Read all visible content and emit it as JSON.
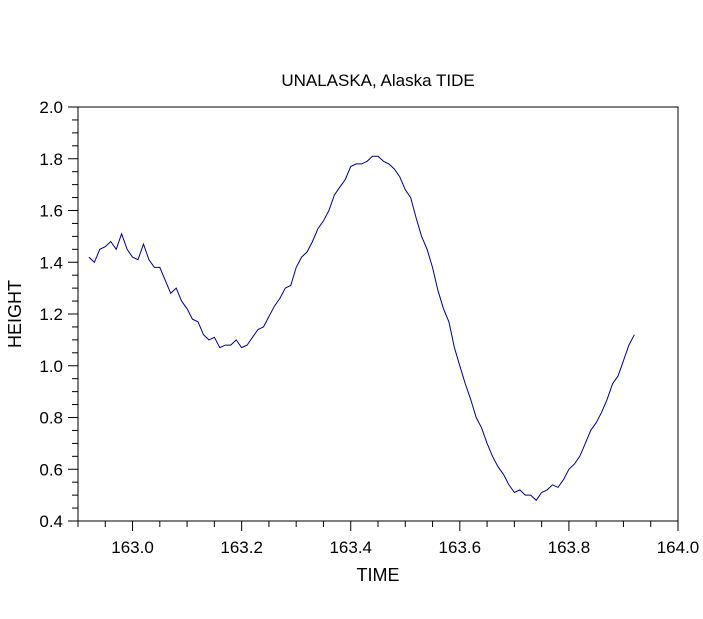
{
  "chart_data": {
    "type": "line",
    "title": "UNALASKA, Alaska TIDE",
    "xlabel": "TIME",
    "ylabel": "HEIGHT",
    "xlim": [
      162.9,
      164.0
    ],
    "ylim": [
      0.4,
      2.0
    ],
    "x_ticks": [
      "163.0",
      "163.2",
      "163.4",
      "163.6",
      "163.8",
      "164.0"
    ],
    "y_ticks": [
      "0.4",
      "0.6",
      "0.8",
      "1.0",
      "1.2",
      "1.4",
      "1.6",
      "1.8",
      "2.0"
    ],
    "grid": false,
    "colors": {
      "line": "#000080",
      "axes": "#000000",
      "background": "#ffffff"
    },
    "series": [
      {
        "x": [
          162.92,
          162.93,
          162.94,
          162.95,
          162.96,
          162.97,
          162.98,
          162.99,
          163.0,
          163.01,
          163.02,
          163.03,
          163.04,
          163.05,
          163.06,
          163.07,
          163.08,
          163.09,
          163.1,
          163.11,
          163.12,
          163.13,
          163.14,
          163.15,
          163.16,
          163.17,
          163.18,
          163.19,
          163.2,
          163.21,
          163.22,
          163.23,
          163.24,
          163.25,
          163.26,
          163.27,
          163.28,
          163.29,
          163.3,
          163.31,
          163.32,
          163.33,
          163.34,
          163.35,
          163.36,
          163.37,
          163.38,
          163.39,
          163.4,
          163.41,
          163.42,
          163.43,
          163.44,
          163.45,
          163.46,
          163.47,
          163.48,
          163.49,
          163.5,
          163.51,
          163.52,
          163.53,
          163.54,
          163.55,
          163.56,
          163.57,
          163.58,
          163.59,
          163.6,
          163.61,
          163.62,
          163.63,
          163.64,
          163.65,
          163.66,
          163.67,
          163.68,
          163.69,
          163.7,
          163.71,
          163.72,
          163.73,
          163.74,
          163.75,
          163.76,
          163.77,
          163.78,
          163.79,
          163.8,
          163.81,
          163.82,
          163.83,
          163.84,
          163.85,
          163.86,
          163.87,
          163.88,
          163.89,
          163.9,
          163.91,
          163.92
        ],
        "y": [
          1.42,
          1.4,
          1.45,
          1.46,
          1.48,
          1.45,
          1.51,
          1.45,
          1.42,
          1.41,
          1.47,
          1.41,
          1.38,
          1.38,
          1.33,
          1.28,
          1.3,
          1.25,
          1.22,
          1.18,
          1.17,
          1.12,
          1.1,
          1.11,
          1.07,
          1.08,
          1.08,
          1.1,
          1.07,
          1.08,
          1.11,
          1.14,
          1.15,
          1.19,
          1.23,
          1.26,
          1.3,
          1.31,
          1.38,
          1.42,
          1.44,
          1.48,
          1.53,
          1.56,
          1.6,
          1.66,
          1.69,
          1.72,
          1.77,
          1.78,
          1.78,
          1.79,
          1.81,
          1.81,
          1.79,
          1.78,
          1.76,
          1.73,
          1.68,
          1.65,
          1.57,
          1.5,
          1.45,
          1.38,
          1.29,
          1.22,
          1.17,
          1.07,
          1.0,
          0.93,
          0.87,
          0.8,
          0.76,
          0.7,
          0.65,
          0.61,
          0.58,
          0.54,
          0.51,
          0.52,
          0.5,
          0.5,
          0.48,
          0.51,
          0.52,
          0.54,
          0.53,
          0.56,
          0.6,
          0.62,
          0.65,
          0.7,
          0.75,
          0.78,
          0.82,
          0.87,
          0.93,
          0.96,
          1.02,
          1.08,
          1.12
        ]
      }
    ]
  }
}
